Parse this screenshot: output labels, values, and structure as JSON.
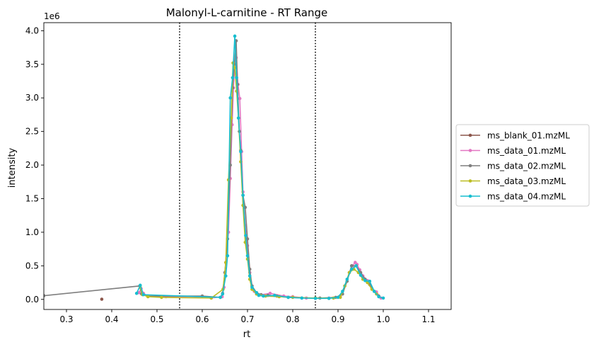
{
  "chart_data": {
    "type": "line",
    "title": "Malonyl-L-carnitine - RT Range",
    "xlabel": "rt",
    "ylabel": "intensity",
    "y_offset_label": "1e6",
    "xlim": [
      0.25,
      1.15
    ],
    "ylim": [
      -0.15,
      4.12
    ],
    "x_ticks": [
      0.3,
      0.4,
      0.5,
      0.6,
      0.7,
      0.8,
      0.9,
      1.0,
      1.1
    ],
    "x_tick_labels": [
      "0.3",
      "0.4",
      "0.5",
      "0.6",
      "0.7",
      "0.8",
      "0.9",
      "1.0",
      "1.1"
    ],
    "y_ticks": [
      0.0,
      0.5,
      1.0,
      1.5,
      2.0,
      2.5,
      3.0,
      3.5,
      4.0
    ],
    "y_tick_labels": [
      "0.0",
      "0.5",
      "1.0",
      "1.5",
      "2.0",
      "2.5",
      "3.0",
      "3.5",
      "4.0"
    ],
    "vlines": [
      0.55,
      0.85
    ],
    "legend_position": "center-right-outside",
    "grid": false,
    "series": [
      {
        "name": "ms_blank_01.mzML",
        "color": "#8c564b",
        "points": [
          [
            0.378,
            0.003
          ]
        ]
      },
      {
        "name": "ms_data_01.mzML",
        "color": "#e377c2",
        "points": [
          [
            0.46,
            0.1
          ],
          [
            0.465,
            0.16
          ],
          [
            0.47,
            0.09
          ],
          [
            0.48,
            0.05
          ],
          [
            0.52,
            0.04
          ],
          [
            0.62,
            0.02
          ],
          [
            0.644,
            0.04
          ],
          [
            0.648,
            0.18
          ],
          [
            0.652,
            0.55
          ],
          [
            0.658,
            1.0
          ],
          [
            0.662,
            1.8
          ],
          [
            0.666,
            2.6
          ],
          [
            0.669,
            3.15
          ],
          [
            0.672,
            3.5
          ],
          [
            0.675,
            3.6
          ],
          [
            0.679,
            3.2
          ],
          [
            0.683,
            2.99
          ],
          [
            0.687,
            2.2
          ],
          [
            0.69,
            1.6
          ],
          [
            0.695,
            1.1
          ],
          [
            0.7,
            0.8
          ],
          [
            0.705,
            0.4
          ],
          [
            0.71,
            0.2
          ],
          [
            0.715,
            0.12
          ],
          [
            0.72,
            0.08
          ],
          [
            0.73,
            0.07
          ],
          [
            0.75,
            0.09
          ],
          [
            0.78,
            0.05
          ],
          [
            0.8,
            0.04
          ],
          [
            0.83,
            0.02
          ],
          [
            0.88,
            0.02
          ],
          [
            0.905,
            0.05
          ],
          [
            0.915,
            0.2
          ],
          [
            0.925,
            0.4
          ],
          [
            0.932,
            0.5
          ],
          [
            0.938,
            0.55
          ],
          [
            0.942,
            0.52
          ],
          [
            0.948,
            0.44
          ],
          [
            0.955,
            0.35
          ],
          [
            0.965,
            0.28
          ],
          [
            0.975,
            0.16
          ],
          [
            0.985,
            0.11
          ],
          [
            0.995,
            0.02
          ]
        ]
      },
      {
        "name": "ms_data_02.mzML",
        "color": "#7f7f7f",
        "points": [
          [
            0.25,
            0.055
          ],
          [
            0.462,
            0.2
          ],
          [
            0.466,
            0.08
          ],
          [
            0.48,
            0.05
          ],
          [
            0.6,
            0.05
          ],
          [
            0.64,
            0.03
          ],
          [
            0.645,
            0.09
          ],
          [
            0.65,
            0.4
          ],
          [
            0.656,
            0.9
          ],
          [
            0.662,
            2.0
          ],
          [
            0.667,
            3.15
          ],
          [
            0.671,
            3.5
          ],
          [
            0.675,
            3.85
          ],
          [
            0.678,
            3.2
          ],
          [
            0.682,
            2.5
          ],
          [
            0.685,
            2.22
          ],
          [
            0.69,
            1.55
          ],
          [
            0.695,
            1.37
          ],
          [
            0.7,
            0.9
          ],
          [
            0.705,
            0.45
          ],
          [
            0.71,
            0.2
          ],
          [
            0.72,
            0.1
          ],
          [
            0.73,
            0.07
          ],
          [
            0.745,
            0.06
          ],
          [
            0.765,
            0.05
          ],
          [
            0.79,
            0.03
          ],
          [
            0.82,
            0.02
          ],
          [
            0.86,
            0.02
          ],
          [
            0.895,
            0.03
          ],
          [
            0.91,
            0.08
          ],
          [
            0.92,
            0.27
          ],
          [
            0.93,
            0.5
          ],
          [
            0.94,
            0.5
          ],
          [
            0.95,
            0.4
          ],
          [
            0.96,
            0.3
          ],
          [
            0.97,
            0.22
          ],
          [
            0.98,
            0.12
          ],
          [
            0.99,
            0.05
          ]
        ]
      },
      {
        "name": "ms_data_03.mzML",
        "color": "#bcbd22",
        "points": [
          [
            0.463,
            0.18
          ],
          [
            0.468,
            0.07
          ],
          [
            0.48,
            0.04
          ],
          [
            0.51,
            0.03
          ],
          [
            0.62,
            0.02
          ],
          [
            0.646,
            0.15
          ],
          [
            0.652,
            0.55
          ],
          [
            0.658,
            1.78
          ],
          [
            0.664,
            2.7
          ],
          [
            0.668,
            3.52
          ],
          [
            0.672,
            3.45
          ],
          [
            0.676,
            3.1
          ],
          [
            0.68,
            2.7
          ],
          [
            0.685,
            2.05
          ],
          [
            0.69,
            1.4
          ],
          [
            0.695,
            0.85
          ],
          [
            0.7,
            0.6
          ],
          [
            0.705,
            0.3
          ],
          [
            0.71,
            0.15
          ],
          [
            0.72,
            0.08
          ],
          [
            0.74,
            0.05
          ],
          [
            0.77,
            0.04
          ],
          [
            0.8,
            0.03
          ],
          [
            0.85,
            0.02
          ],
          [
            0.89,
            0.02
          ],
          [
            0.905,
            0.03
          ],
          [
            0.915,
            0.2
          ],
          [
            0.925,
            0.4
          ],
          [
            0.935,
            0.45
          ],
          [
            0.945,
            0.4
          ],
          [
            0.955,
            0.3
          ],
          [
            0.965,
            0.25
          ],
          [
            0.975,
            0.15
          ],
          [
            0.985,
            0.08
          ]
        ]
      },
      {
        "name": "ms_data_04.mzML",
        "color": "#17becf",
        "points": [
          [
            0.455,
            0.09
          ],
          [
            0.463,
            0.21
          ],
          [
            0.47,
            0.07
          ],
          [
            0.64,
            0.03
          ],
          [
            0.645,
            0.08
          ],
          [
            0.652,
            0.35
          ],
          [
            0.656,
            0.65
          ],
          [
            0.662,
            3.0
          ],
          [
            0.667,
            3.3
          ],
          [
            0.672,
            3.92
          ],
          [
            0.676,
            3.3
          ],
          [
            0.68,
            2.7
          ],
          [
            0.685,
            2.2
          ],
          [
            0.69,
            1.55
          ],
          [
            0.696,
            0.95
          ],
          [
            0.7,
            0.65
          ],
          [
            0.705,
            0.35
          ],
          [
            0.71,
            0.18
          ],
          [
            0.72,
            0.1
          ],
          [
            0.725,
            0.06
          ],
          [
            0.735,
            0.05
          ],
          [
            0.76,
            0.06
          ],
          [
            0.79,
            0.03
          ],
          [
            0.82,
            0.02
          ],
          [
            0.85,
            0.015
          ],
          [
            0.88,
            0.015
          ],
          [
            0.9,
            0.03
          ],
          [
            0.91,
            0.12
          ],
          [
            0.92,
            0.3
          ],
          [
            0.93,
            0.45
          ],
          [
            0.94,
            0.5
          ],
          [
            0.95,
            0.36
          ],
          [
            0.96,
            0.28
          ],
          [
            0.97,
            0.27
          ],
          [
            0.98,
            0.12
          ],
          [
            0.99,
            0.04
          ],
          [
            1.0,
            0.02
          ]
        ]
      }
    ]
  }
}
